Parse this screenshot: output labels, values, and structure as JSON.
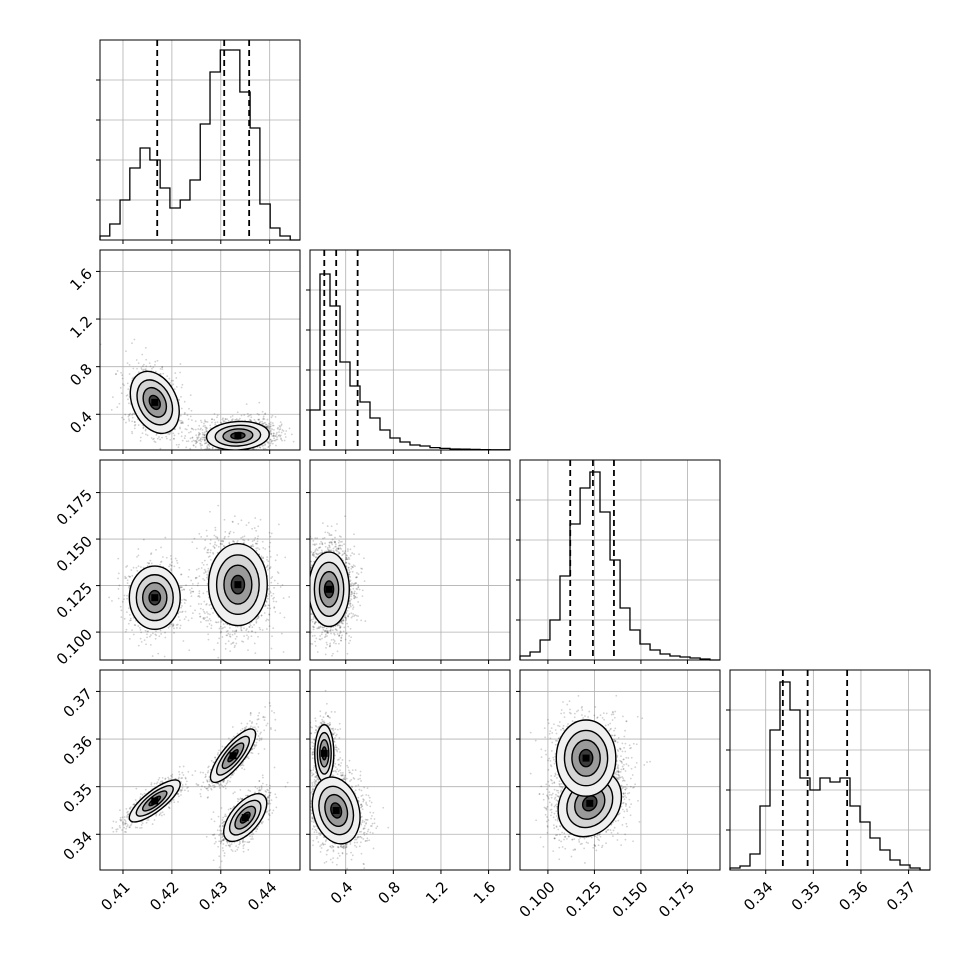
{
  "chart_data": {
    "type": "corner",
    "grid": true,
    "colors": {
      "line": "#000000",
      "grid": "#b0b0b0",
      "background": "#ffffff"
    },
    "parameters": [
      {
        "ticks": [
          0.41,
          0.42,
          0.43,
          0.44
        ],
        "tick_labels": [
          "0.41",
          "0.42",
          "0.43",
          "0.44"
        ],
        "range": [
          0.4053,
          0.4462
        ],
        "quantiles": [
          0.417,
          0.4307,
          0.4358
        ],
        "hist_x": [
          0.4053,
          0.4073,
          0.4094,
          0.4114,
          0.4135,
          0.4155,
          0.4176,
          0.4196,
          0.4217,
          0.4237,
          0.4258,
          0.4278,
          0.4299,
          0.4319,
          0.4339,
          0.436,
          0.438,
          0.4401,
          0.4421,
          0.4442,
          0.4462
        ],
        "hist_counts": [
          0.02,
          0.08,
          0.2,
          0.36,
          0.46,
          0.4,
          0.26,
          0.16,
          0.2,
          0.3,
          0.58,
          0.84,
          0.95,
          0.95,
          0.74,
          0.56,
          0.18,
          0.06,
          0.02,
          0.0
        ]
      },
      {
        "ticks": [
          0.4,
          0.8,
          1.2,
          1.6
        ],
        "tick_labels": [
          "0.4",
          "0.8",
          "1.2",
          "1.6"
        ],
        "range": [
          0.1,
          1.78
        ],
        "quantiles": [
          0.22,
          0.32,
          0.5
        ],
        "hist_x": [
          0.1,
          0.184,
          0.268,
          0.352,
          0.436,
          0.52,
          0.604,
          0.688,
          0.772,
          0.856,
          0.94,
          1.024,
          1.108,
          1.192,
          1.276,
          1.36,
          1.444,
          1.528,
          1.612,
          1.696,
          1.78
        ],
        "hist_counts": [
          0.2,
          0.88,
          0.72,
          0.44,
          0.32,
          0.24,
          0.16,
          0.1,
          0.06,
          0.04,
          0.025,
          0.02,
          0.012,
          0.008,
          0.005,
          0.004,
          0.003,
          0.002,
          0.001,
          0.001
        ]
      },
      {
        "ticks": [
          0.1,
          0.125,
          0.15,
          0.175
        ],
        "tick_labels": [
          "0.100",
          "0.125",
          "0.150",
          "0.175"
        ],
        "range": [
          0.085,
          0.1925
        ],
        "quantiles": [
          0.112,
          0.1242,
          0.1355
        ],
        "hist_x": [
          0.085,
          0.0904,
          0.0958,
          0.1011,
          0.1065,
          0.1119,
          0.1173,
          0.1226,
          0.128,
          0.1334,
          0.1388,
          0.1441,
          0.1495,
          0.1549,
          0.1603,
          0.1656,
          0.171,
          0.1764,
          0.1818,
          0.1871,
          0.1925
        ],
        "hist_counts": [
          0.02,
          0.04,
          0.1,
          0.2,
          0.42,
          0.68,
          0.86,
          0.94,
          0.74,
          0.5,
          0.26,
          0.15,
          0.08,
          0.05,
          0.03,
          0.02,
          0.015,
          0.01,
          0.005,
          0.0
        ]
      },
      {
        "ticks": [
          0.34,
          0.35,
          0.36,
          0.37
        ],
        "tick_labels": [
          "0.34",
          "0.35",
          "0.36",
          "0.37"
        ],
        "range": [
          0.3325,
          0.3745
        ],
        "quantiles": [
          0.3436,
          0.3488,
          0.3571
        ],
        "hist_x": [
          0.3325,
          0.3346,
          0.3367,
          0.3388,
          0.3409,
          0.343,
          0.3451,
          0.3472,
          0.3493,
          0.3514,
          0.3535,
          0.3556,
          0.3577,
          0.3598,
          0.3619,
          0.364,
          0.3661,
          0.3682,
          0.3703,
          0.3724,
          0.3745
        ],
        "hist_counts": [
          0.01,
          0.02,
          0.08,
          0.32,
          0.7,
          0.94,
          0.8,
          0.46,
          0.4,
          0.46,
          0.44,
          0.46,
          0.32,
          0.24,
          0.16,
          0.1,
          0.05,
          0.025,
          0.01,
          0.0
        ]
      }
    ],
    "pairs": [
      {
        "row": 1,
        "col": 0,
        "modes": [
          {
            "mean": [
              0.4165,
              0.5
            ],
            "sd": [
              0.0025,
              0.13
            ],
            "rho": -0.3,
            "weight": 0.35
          },
          {
            "mean": [
              0.4335,
              0.22
            ],
            "sd": [
              0.0032,
              0.06
            ],
            "rho": 0.1,
            "weight": 0.65
          }
        ]
      },
      {
        "row": 2,
        "col": 0,
        "modes": [
          {
            "mean": [
              0.4165,
              0.1185
            ],
            "sd": [
              0.0026,
              0.0085
            ],
            "rho": 0.0,
            "weight": 0.33
          },
          {
            "mean": [
              0.4335,
              0.1255
            ],
            "sd": [
              0.003,
              0.011
            ],
            "rho": 0.0,
            "weight": 0.67
          }
        ]
      },
      {
        "row": 3,
        "col": 0,
        "modes": [
          {
            "mean": [
              0.4165,
              0.347
            ],
            "sd": [
              0.0026,
              0.0022
            ],
            "rho": 0.8,
            "weight": 0.3
          },
          {
            "mean": [
              0.4325,
              0.3565
            ],
            "sd": [
              0.0023,
              0.0028
            ],
            "rho": 0.8,
            "weight": 0.35
          },
          {
            "mean": [
              0.435,
              0.3435
            ],
            "sd": [
              0.0022,
              0.0025
            ],
            "rho": 0.6,
            "weight": 0.35
          }
        ]
      },
      {
        "row": 2,
        "col": 1,
        "modes": [
          {
            "mean": [
              0.26,
              0.123
            ],
            "sd": [
              0.085,
              0.01
            ],
            "rho": 0.0,
            "weight": 1.0
          }
        ]
      },
      {
        "row": 3,
        "col": 1,
        "modes": [
          {
            "mean": [
              0.22,
              0.357
            ],
            "sd": [
              0.04,
              0.003
            ],
            "rho": 0.0,
            "weight": 0.35
          },
          {
            "mean": [
              0.32,
              0.345
            ],
            "sd": [
              0.1,
              0.0035
            ],
            "rho": -0.2,
            "weight": 0.65
          }
        ]
      },
      {
        "row": 3,
        "col": 2,
        "modes": [
          {
            "mean": [
              0.1225,
              0.3465
            ],
            "sd": [
              0.0085,
              0.0035
            ],
            "rho": 0.2,
            "weight": 0.6
          },
          {
            "mean": [
              0.1205,
              0.356
            ],
            "sd": [
              0.008,
              0.004
            ],
            "rho": 0.0,
            "weight": 0.4
          }
        ]
      }
    ]
  }
}
